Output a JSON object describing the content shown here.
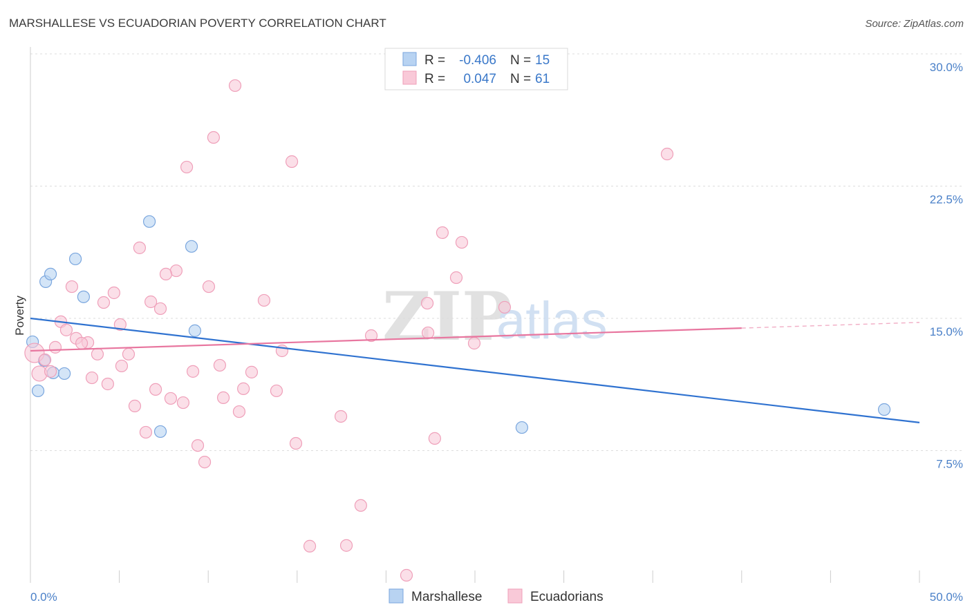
{
  "source": "Source: ZipAtlas.com",
  "watermark": {
    "zip": "ZIP",
    "atlas": "atlas"
  },
  "legend": {
    "rows": [
      {
        "r_label": "R =",
        "r_value": "-0.406",
        "n_label": "N =",
        "n_value": "15"
      },
      {
        "r_label": "R =",
        "r_value": "0.047",
        "n_label": "N =",
        "n_value": "61"
      }
    ]
  },
  "colors": {
    "marshallese_fill": "#b8d3f2",
    "marshallese_stroke": "#7aa6de",
    "marshallese_line": "#2f72d0",
    "ecuadorian_fill": "#f9c9d8",
    "ecuadorian_stroke": "#ef9fb9",
    "ecuadorian_line": "#e8769f",
    "grid": "#dddddd",
    "axis": "#cccccc"
  },
  "chart_data": {
    "type": "scatter",
    "title": "MARSHALLESE VS ECUADORIAN POVERTY CORRELATION CHART",
    "xlabel": "",
    "ylabel": "Poverty",
    "xlim": [
      0,
      50
    ],
    "ylim": [
      0,
      30
    ],
    "x_tick_step": 5,
    "x_ticks": [
      {
        "value": 0,
        "label": "0.0%"
      },
      {
        "value": 50,
        "label": "50.0%"
      }
    ],
    "y_ticks": [
      {
        "value": 30,
        "label": "30.0%"
      },
      {
        "value": 22.5,
        "label": "22.5%"
      },
      {
        "value": 15,
        "label": "15.0%"
      },
      {
        "value": 7.5,
        "label": "7.5%"
      }
    ],
    "grid": true,
    "legend_position": "bottom-center",
    "series": [
      {
        "name": "Marshallese",
        "key": "marshallese",
        "points": [
          [
            0.12,
            13.67
          ],
          [
            0.43,
            10.89
          ],
          [
            0.78,
            12.61
          ],
          [
            0.86,
            17.08
          ],
          [
            1.13,
            17.51
          ],
          [
            1.28,
            11.91
          ],
          [
            1.91,
            11.87
          ],
          [
            2.53,
            18.37
          ],
          [
            2.99,
            16.22
          ],
          [
            6.69,
            20.49
          ],
          [
            7.31,
            8.58
          ],
          [
            9.06,
            19.08
          ],
          [
            9.25,
            14.3
          ],
          [
            27.64,
            8.81
          ],
          [
            48.02,
            9.83
          ]
        ],
        "trend": {
          "x_start": 0,
          "y_start": 15.0,
          "x_end": 50,
          "y_end": 9.09,
          "solid_until": 50
        }
      },
      {
        "name": "Ecuadorians",
        "key": "ecuadorian",
        "points": [
          [
            11.51,
            28.2
          ],
          [
            10.3,
            25.26
          ],
          [
            8.79,
            23.58
          ],
          [
            14.7,
            23.89
          ],
          [
            35.81,
            24.32
          ],
          [
            23.17,
            19.86
          ],
          [
            24.26,
            19.31
          ],
          [
            6.14,
            19.0
          ],
          [
            8.2,
            17.7
          ],
          [
            7.62,
            17.51
          ],
          [
            23.95,
            17.31
          ],
          [
            2.33,
            16.8
          ],
          [
            10.03,
            16.8
          ],
          [
            4.7,
            16.45
          ],
          [
            4.12,
            15.9
          ],
          [
            6.77,
            15.94
          ],
          [
            13.14,
            16.02
          ],
          [
            22.32,
            15.86
          ],
          [
            7.31,
            15.55
          ],
          [
            26.67,
            15.63
          ],
          [
            1.71,
            14.81
          ],
          [
            5.05,
            14.65
          ],
          [
            2.02,
            14.34
          ],
          [
            22.36,
            14.18
          ],
          [
            19.17,
            14.02
          ],
          [
            2.57,
            13.87
          ],
          [
            3.23,
            13.63
          ],
          [
            2.88,
            13.59
          ],
          [
            24.96,
            13.59
          ],
          [
            1.4,
            13.36
          ],
          [
            14.15,
            13.16
          ],
          [
            3.77,
            12.97
          ],
          [
            5.52,
            12.97
          ],
          [
            0.23,
            13.04
          ],
          [
            0.82,
            12.65
          ],
          [
            5.13,
            12.3
          ],
          [
            10.65,
            12.34
          ],
          [
            0.51,
            11.87
          ],
          [
            1.13,
            11.99
          ],
          [
            9.14,
            11.99
          ],
          [
            12.44,
            11.95
          ],
          [
            3.46,
            11.63
          ],
          [
            4.35,
            11.28
          ],
          [
            7.04,
            10.97
          ],
          [
            11.98,
            11.01
          ],
          [
            13.84,
            10.89
          ],
          [
            7.89,
            10.46
          ],
          [
            10.85,
            10.5
          ],
          [
            8.59,
            10.22
          ],
          [
            5.87,
            10.03
          ],
          [
            11.74,
            9.71
          ],
          [
            17.46,
            9.44
          ],
          [
            6.49,
            8.54
          ],
          [
            22.74,
            8.19
          ],
          [
            14.93,
            7.91
          ],
          [
            9.41,
            7.79
          ],
          [
            9.8,
            6.85
          ],
          [
            18.58,
            4.39
          ],
          [
            15.71,
            2.08
          ],
          [
            17.77,
            2.12
          ],
          [
            21.15,
            0.43
          ]
        ],
        "trend": {
          "x_start": 0,
          "y_start": 13.16,
          "x_end": 50,
          "y_end": 14.77,
          "solid_until": 40
        }
      }
    ]
  }
}
